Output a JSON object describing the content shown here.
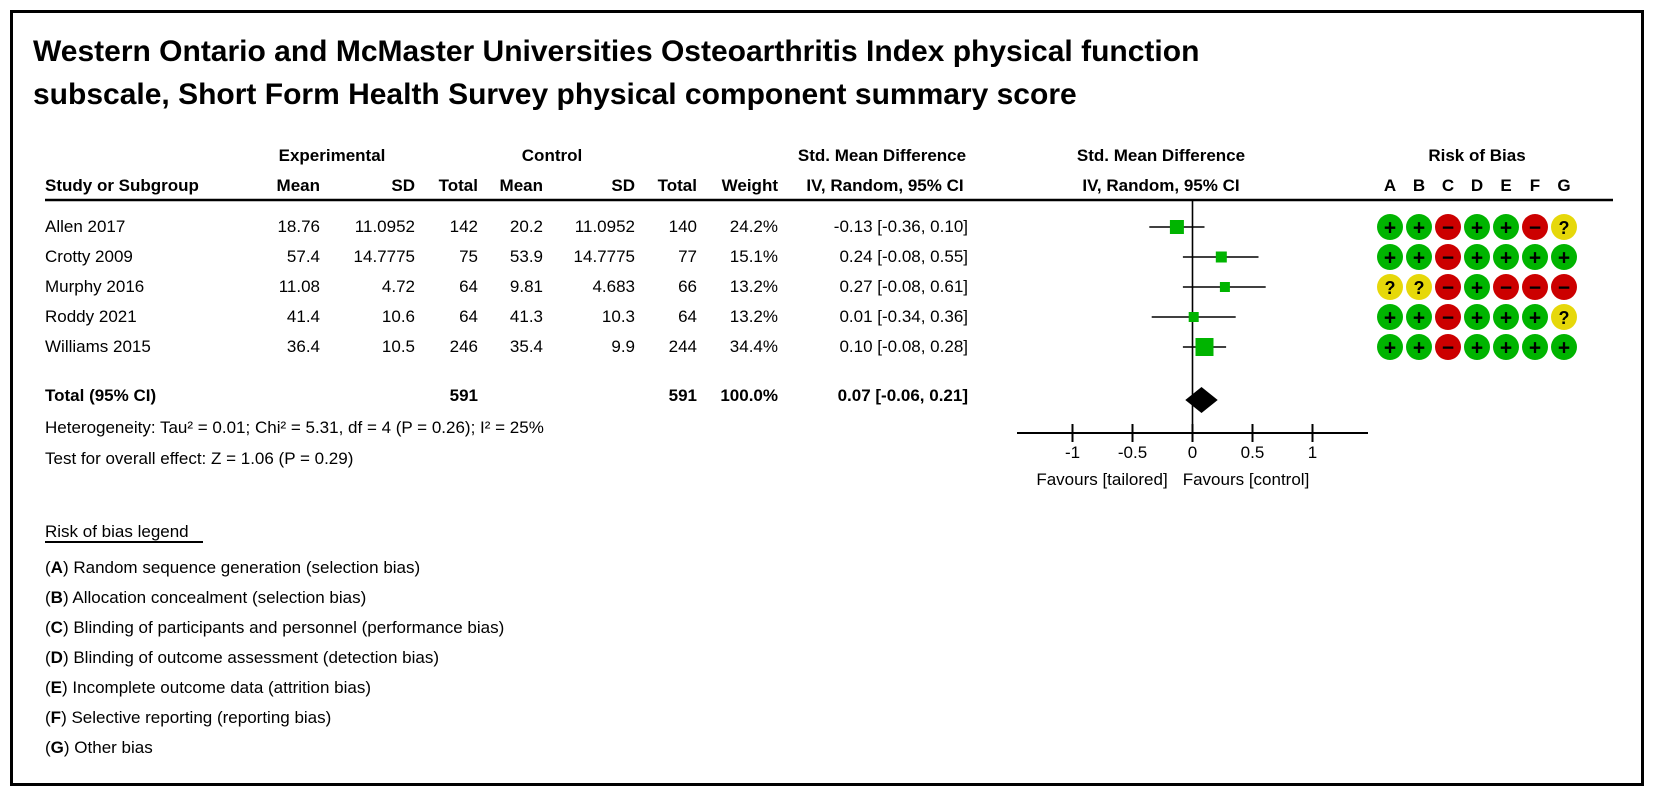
{
  "title_line1": "Western Ontario and McMaster Universities Osteoarthritis Index physical function",
  "title_line2": "subscale, Short Form Health Survey physical component summary score",
  "table": {
    "group_headers": {
      "experimental": "Experimental",
      "control": "Control",
      "smd_text": "Std. Mean Difference",
      "smd_plot": "Std. Mean Difference",
      "risk": "Risk of Bias"
    },
    "col_headers": {
      "study": "Study or Subgroup",
      "mean1": "Mean",
      "sd1": "SD",
      "total1": "Total",
      "mean2": "Mean",
      "sd2": "SD",
      "total2": "Total",
      "weight": "Weight",
      "ci_text": "IV, Random, 95% CI",
      "ci_plot": "IV, Random, 95% CI"
    },
    "risk_columns": [
      "A",
      "B",
      "C",
      "D",
      "E",
      "F",
      "G"
    ]
  },
  "chart_data": {
    "type": "forest",
    "effect_measure": "Std. Mean Difference, IV, Random, 95% CI",
    "studies": [
      {
        "label": "Allen 2017",
        "mean1": "18.76",
        "sd1": "11.0952",
        "total1": "142",
        "mean2": "20.2",
        "sd2": "11.0952",
        "total2": "140",
        "weight": "24.2%",
        "weight_pct": 24.2,
        "ci_text": "-0.13 [-0.36, 0.10]",
        "smd": -0.13,
        "lo": -0.36,
        "hi": 0.1,
        "risk": [
          "+",
          "+",
          "-",
          "+",
          "+",
          "-",
          "?"
        ]
      },
      {
        "label": "Crotty 2009",
        "mean1": "57.4",
        "sd1": "14.7775",
        "total1": "75",
        "mean2": "53.9",
        "sd2": "14.7775",
        "total2": "77",
        "weight": "15.1%",
        "weight_pct": 15.1,
        "ci_text": "0.24 [-0.08, 0.55]",
        "smd": 0.24,
        "lo": -0.08,
        "hi": 0.55,
        "risk": [
          "+",
          "+",
          "-",
          "+",
          "+",
          "+",
          "+"
        ]
      },
      {
        "label": "Murphy 2016",
        "mean1": "11.08",
        "sd1": "4.72",
        "total1": "64",
        "mean2": "9.81",
        "sd2": "4.683",
        "total2": "66",
        "weight": "13.2%",
        "weight_pct": 13.2,
        "ci_text": "0.27 [-0.08, 0.61]",
        "smd": 0.27,
        "lo": -0.08,
        "hi": 0.61,
        "risk": [
          "?",
          "?",
          "-",
          "+",
          "-",
          "-",
          "-"
        ]
      },
      {
        "label": "Roddy 2021",
        "mean1": "41.4",
        "sd1": "10.6",
        "total1": "64",
        "mean2": "41.3",
        "sd2": "10.3",
        "total2": "64",
        "weight": "13.2%",
        "weight_pct": 13.2,
        "ci_text": "0.01 [-0.34, 0.36]",
        "smd": 0.01,
        "lo": -0.34,
        "hi": 0.36,
        "risk": [
          "+",
          "+",
          "-",
          "+",
          "+",
          "+",
          "?"
        ]
      },
      {
        "label": "Williams 2015",
        "mean1": "36.4",
        "sd1": "10.5",
        "total1": "246",
        "mean2": "35.4",
        "sd2": "9.9",
        "total2": "244",
        "weight": "34.4%",
        "weight_pct": 34.4,
        "ci_text": "0.10 [-0.08, 0.28]",
        "smd": 0.1,
        "lo": -0.08,
        "hi": 0.28,
        "risk": [
          "+",
          "+",
          "-",
          "+",
          "+",
          "+",
          "+"
        ]
      }
    ],
    "total": {
      "label": "Total (95% CI)",
      "total1": "591",
      "total2": "591",
      "weight": "100.0%",
      "ci_text": "0.07 [-0.06, 0.21]",
      "smd": 0.07,
      "lo": -0.06,
      "hi": 0.21
    },
    "heterogeneity": "Heterogeneity: Tau² = 0.01; Chi² = 5.31, df = 4 (P = 0.26); I² = 25%",
    "overall_effect": "Test for overall effect: Z = 1.06 (P = 0.29)",
    "axis": {
      "ticks": [
        {
          "v": -1,
          "label": "-1"
        },
        {
          "v": -0.5,
          "label": "-0.5"
        },
        {
          "v": 0,
          "label": "0"
        },
        {
          "v": 0.5,
          "label": "0.5"
        },
        {
          "v": 1,
          "label": "1"
        }
      ],
      "left_label": "Favours [tailored]",
      "right_label": "Favours [control]"
    },
    "colors": {
      "marker_green": "#00b400",
      "risk_low": "#00b400",
      "risk_high": "#cc0000",
      "risk_unclear": "#e6d80a",
      "diamond": "#000000"
    }
  },
  "legend": {
    "heading": "Risk of bias legend",
    "items": [
      {
        "key": "A",
        "text": "Random sequence generation (selection bias)"
      },
      {
        "key": "B",
        "text": "Allocation concealment (selection bias)"
      },
      {
        "key": "C",
        "text": "Blinding of participants and personnel (performance bias)"
      },
      {
        "key": "D",
        "text": "Blinding of outcome assessment (detection bias)"
      },
      {
        "key": "E",
        "text": "Incomplete outcome data (attrition bias)"
      },
      {
        "key": "F",
        "text": "Selective reporting (reporting bias)"
      },
      {
        "key": "G",
        "text": "Other bias"
      }
    ]
  }
}
